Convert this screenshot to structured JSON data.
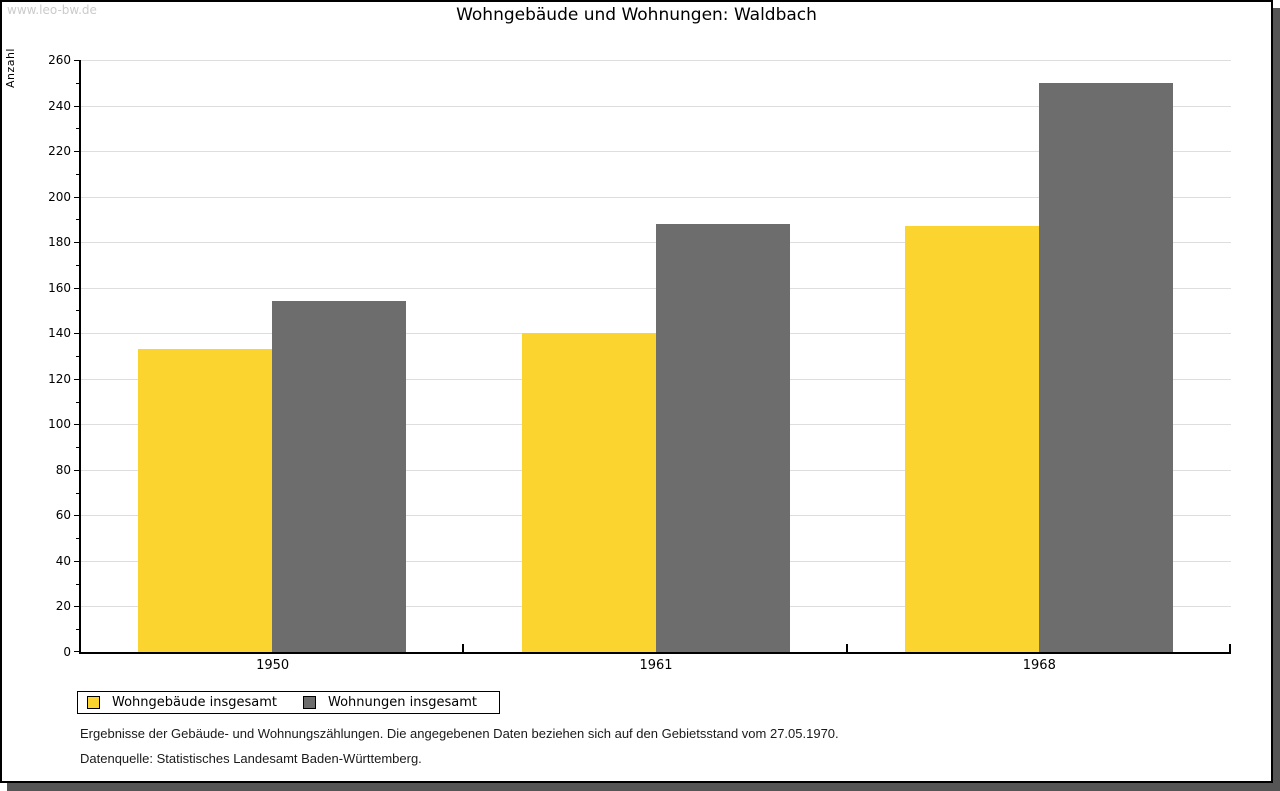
{
  "watermark": "www.leo-bw.de",
  "chart_data": {
    "type": "bar",
    "title": "Wohngebäude und Wohnungen: Waldbach",
    "ylabel": "Anzahl",
    "xlabel": "",
    "categories": [
      "1950",
      "1961",
      "1968"
    ],
    "series": [
      {
        "name": "Wohngebäude insgesamt",
        "color": "#FCD42F",
        "values": [
          133,
          140,
          187
        ]
      },
      {
        "name": "Wohnungen insgesamt",
        "color": "#6D6D6D",
        "values": [
          154,
          188,
          250
        ]
      }
    ],
    "ylim": [
      0,
      260
    ],
    "ytick_major": 20,
    "ytick_minor": 10,
    "grid": true,
    "legend_position": "bottom-left"
  },
  "footer": {
    "line1": "Ergebnisse der Gebäude- und Wohnungszählungen. Die angegebenen Daten beziehen sich auf den Gebietsstand vom 27.05.1970.",
    "line2": "Datenquelle: Statistisches Landesamt Baden-Württemberg."
  },
  "colors": {
    "bar_yellow": "#FCD42F",
    "bar_gray": "#6D6D6D",
    "gridline": "#dedede",
    "shadow": "#555555",
    "watermark": "#cbcbcb",
    "axis": "#000000"
  }
}
